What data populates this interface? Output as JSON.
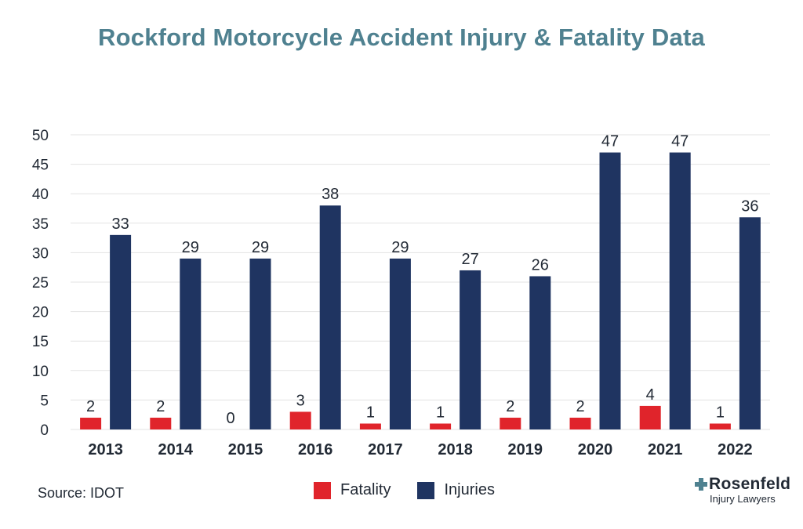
{
  "chart_data": {
    "type": "bar",
    "title": "Rockford Motorcycle Accident Injury & Fatality Data",
    "categories": [
      "2013",
      "2014",
      "2015",
      "2016",
      "2017",
      "2018",
      "2019",
      "2020",
      "2021",
      "2022"
    ],
    "series": [
      {
        "name": "Fatality",
        "color": "#e0242b",
        "values": [
          2,
          2,
          0,
          3,
          1,
          1,
          2,
          2,
          4,
          1
        ]
      },
      {
        "name": "Injuries",
        "color": "#1f3461",
        "values": [
          33,
          29,
          29,
          38,
          29,
          27,
          26,
          47,
          47,
          36
        ]
      }
    ],
    "ylim": [
      0,
      50
    ],
    "yticks": [
      "0",
      "5",
      "10",
      "15",
      "20",
      "25",
      "30",
      "35",
      "40",
      "45",
      "50"
    ],
    "grid": true,
    "data_labels": true,
    "legend_position": "bottom-center"
  },
  "colors": {
    "title": "#4f8190",
    "grid": "#e3e3e3",
    "logo_accent": "#4f8190"
  },
  "footer": {
    "source": "Source: IDOT"
  },
  "logo": {
    "name": "Rosenfeld",
    "tagline": "Injury Lawyers",
    "icon": "plus-icon"
  }
}
